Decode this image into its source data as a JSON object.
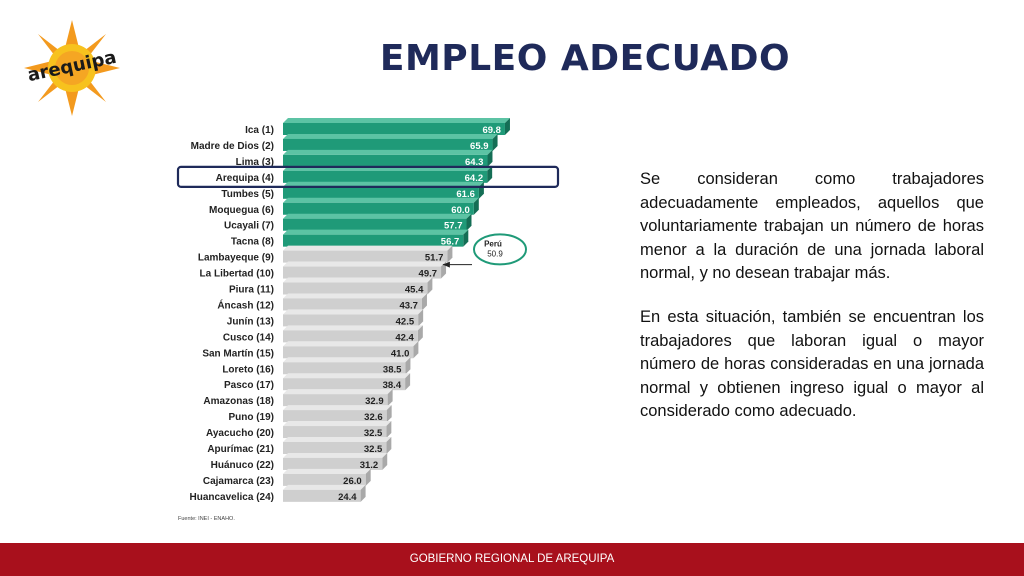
{
  "title": "EMPLEO ADECUADO",
  "logo": {
    "text": "arequipa"
  },
  "paragraphs": [
    "Se consideran como trabajadores adecuadamente empleados, aquellos que voluntariamente trabajan un número de horas menor a la duración de una jornada laboral normal, y no desean trabajar más.",
    "En esta situación, también se encuentran los trabajadores que laboran igual o mayor número de horas consideradas en una jornada normal y obtienen ingreso igual o mayor al considerado como adecuado."
  ],
  "footer": "GOBIERNO REGIONAL DE AREQUIPA",
  "chart_data": {
    "type": "bar",
    "orientation": "horizontal",
    "categories": [
      "Ica (1)",
      "Madre de Dios (2)",
      "Lima (3)",
      "Arequipa (4)",
      "Tumbes (5)",
      "Moquegua (6)",
      "Ucayali (7)",
      "Tacna (8)",
      "Lambayeque (9)",
      "La Libertad (10)",
      "Piura (11)",
      "Áncash (12)",
      "Junín (13)",
      "Cusco (14)",
      "San Martín (15)",
      "Loreto (16)",
      "Pasco (17)",
      "Amazonas (18)",
      "Puno (19)",
      "Ayacucho (20)",
      "Apurímac (21)",
      "Huánuco (22)",
      "Cajamarca (23)",
      "Huancavelica (24)"
    ],
    "values": [
      69.8,
      65.9,
      64.3,
      64.2,
      61.6,
      60.0,
      57.7,
      56.7,
      51.7,
      49.7,
      45.4,
      43.7,
      42.5,
      42.4,
      41.0,
      38.5,
      38.4,
      32.9,
      32.6,
      32.5,
      32.5,
      31.2,
      26.0,
      24.4
    ],
    "value_labels": [
      "69.8",
      "65.9",
      "64.3",
      "64.2",
      "61.6",
      "60.0",
      "57.7",
      "56.7",
      "51.7",
      "49.7",
      "45.4",
      "43.7",
      "42.5",
      "42.4",
      "41.0",
      "38.5",
      "38.4",
      "32.9",
      "32.6",
      "32.5",
      "32.5",
      "31.2",
      "26.0",
      "24.4"
    ],
    "highlight_count": 8,
    "highlighted_category": "Arequipa (4)",
    "colors": {
      "above": "#1f9a78",
      "below": "#cfcfcf",
      "label_above": "#ffffff",
      "label_below": "#222222",
      "highlight_box": "#1f2a5a",
      "reference": "#1f9a78"
    },
    "reference": {
      "label": "Perú",
      "value_label": "50.9",
      "value": 50.9
    },
    "source": "Fuente: INEI - ENAHO."
  }
}
